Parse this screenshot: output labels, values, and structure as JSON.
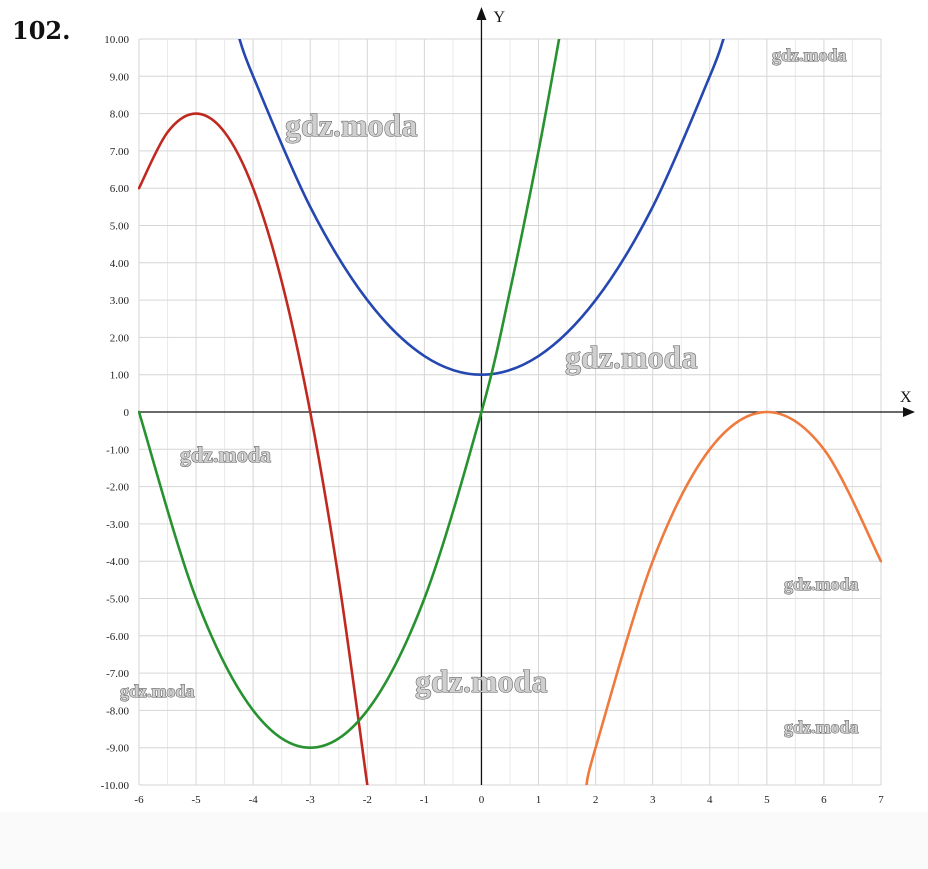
{
  "problem_number": "102.",
  "watermark_text": "gdz.moda",
  "chart_data": {
    "type": "line",
    "title": "",
    "xlabel": "X",
    "ylabel": "Y",
    "xlim": [
      -6,
      7
    ],
    "ylim": [
      -10,
      10
    ],
    "grid": true,
    "x_ticks": [
      -6,
      -5,
      -4,
      -3,
      -2,
      -1,
      0,
      1,
      2,
      3,
      4,
      5,
      6,
      7
    ],
    "x_tick_labels": [
      "-6",
      "-5",
      "-4",
      "-3",
      "-2",
      "-1",
      "0",
      "1",
      "2",
      "3",
      "4",
      "5",
      "6",
      "7"
    ],
    "y_ticks": [
      10,
      9,
      8,
      7,
      6,
      5,
      4,
      3,
      2,
      1,
      0,
      -1,
      -2,
      -3,
      -4,
      -5,
      -6,
      -7,
      -8,
      -9,
      -10
    ],
    "y_tick_labels": [
      "10.00",
      "9.00",
      "8.00",
      "7.00",
      "6.00",
      "5.00",
      "4.00",
      "3.00",
      "2.00",
      "1.00",
      "0",
      "-1.00",
      "-2.00",
      "-3.00",
      "-4.00",
      "-5.00",
      "-6.00",
      "-7.00",
      "-8.00",
      "-9.00",
      "-10.00"
    ],
    "series": [
      {
        "color": "#c0291f",
        "x": [
          -6,
          -5.5,
          -5,
          -4.5,
          -4,
          -3.5,
          -3,
          -2.5,
          -2
        ],
        "y": [
          6,
          7.5,
          8,
          7.5,
          6,
          3.5,
          0,
          -4.5,
          -10
        ]
      },
      {
        "color": "#2447b0",
        "x": [
          -4.24,
          -4,
          -3,
          -2,
          -1,
          0,
          1,
          2,
          3,
          4,
          4.24
        ],
        "y": [
          10,
          9,
          5.5,
          3,
          1.5,
          1,
          1.5,
          3,
          5.5,
          9,
          10
        ]
      },
      {
        "color": "#27922f",
        "x": [
          -6,
          -5,
          -4,
          -3,
          -2,
          -1,
          0,
          0.5,
          1,
          1.36
        ],
        "y": [
          0,
          -5,
          -8,
          -9,
          -8,
          -5,
          0,
          3.25,
          7,
          10
        ]
      },
      {
        "color": "#ef7a3d",
        "x": [
          1.84,
          2,
          3,
          4,
          5,
          6,
          7
        ],
        "y": [
          -10,
          -9,
          -4,
          -1,
          0,
          -1,
          -4
        ]
      }
    ]
  }
}
